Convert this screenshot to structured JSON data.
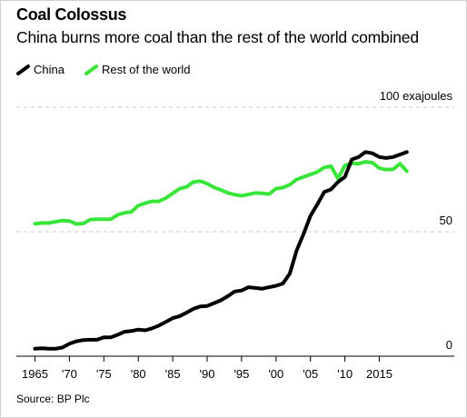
{
  "header": {
    "title": "Coal Colossus",
    "subtitle": "China burns more coal than the rest of the world combined"
  },
  "source": "Source: BP Plc",
  "chart_data": {
    "type": "line",
    "title": "Coal Colossus",
    "subtitle": "China burns more coal than the rest of the world combined",
    "xlim": [
      1965,
      2019
    ],
    "ylim": [
      0,
      100
    ],
    "y_unit_label": "100 exajoules",
    "y_ticks": [
      {
        "value": 0,
        "label": "0"
      },
      {
        "value": 50,
        "label": "50"
      },
      {
        "value": 100,
        "label": "100 exajoules"
      }
    ],
    "x_ticks": [
      {
        "value": 1965,
        "label": "1965"
      },
      {
        "value": 1970,
        "label": "'70"
      },
      {
        "value": 1975,
        "label": "'75"
      },
      {
        "value": 1980,
        "label": "'80"
      },
      {
        "value": 1985,
        "label": "'85"
      },
      {
        "value": 1990,
        "label": "'90"
      },
      {
        "value": 1995,
        "label": "'95"
      },
      {
        "value": 2000,
        "label": "'00"
      },
      {
        "value": 2005,
        "label": "'05"
      },
      {
        "value": 2010,
        "label": "'10"
      },
      {
        "value": 2015,
        "label": "2015"
      }
    ],
    "grid": "dashed horizontal",
    "legend": "top-left",
    "series": [
      {
        "name": "China",
        "color": "#000000",
        "x": [
          1965,
          1966,
          1967,
          1968,
          1969,
          1970,
          1971,
          1972,
          1973,
          1974,
          1975,
          1976,
          1977,
          1978,
          1979,
          1980,
          1981,
          1982,
          1983,
          1984,
          1985,
          1986,
          1987,
          1988,
          1989,
          1990,
          1991,
          1992,
          1993,
          1994,
          1995,
          1996,
          1997,
          1998,
          1999,
          2000,
          2001,
          2002,
          2003,
          2004,
          2005,
          2006,
          2007,
          2008,
          2009,
          2010,
          2011,
          2012,
          2013,
          2014,
          2015,
          2016,
          2017,
          2018,
          2019
        ],
        "values": [
          3,
          3.2,
          3,
          3,
          3.5,
          5,
          6,
          6.5,
          6.6,
          6.6,
          7.6,
          7.6,
          8.6,
          9.8,
          10.1,
          10.7,
          10.4,
          11.2,
          12.3,
          13.8,
          15.3,
          16.1,
          17.5,
          19,
          20,
          20.2,
          21.3,
          22.5,
          24.1,
          26,
          26.4,
          27.7,
          27.4,
          27.1,
          27.7,
          28.3,
          29.2,
          33.2,
          42.5,
          49.1,
          56.4,
          61,
          66,
          67,
          70,
          72,
          79,
          80,
          82,
          81.5,
          80,
          79.6,
          80,
          81,
          82
        ]
      },
      {
        "name": "Rest of the world",
        "color": "#3ae53a",
        "x": [
          1965,
          1966,
          1967,
          1968,
          1969,
          1970,
          1971,
          1972,
          1973,
          1974,
          1975,
          1976,
          1977,
          1978,
          1979,
          1980,
          1981,
          1982,
          1983,
          1984,
          1985,
          1986,
          1987,
          1988,
          1989,
          1990,
          1991,
          1992,
          1993,
          1994,
          1995,
          1996,
          1997,
          1998,
          1999,
          2000,
          2001,
          2002,
          2003,
          2004,
          2005,
          2006,
          2007,
          2008,
          2009,
          2010,
          2011,
          2012,
          2013,
          2014,
          2015,
          2016,
          2017,
          2018,
          2019
        ],
        "values": [
          53.2,
          53.5,
          53.5,
          54,
          54.5,
          54.3,
          53.1,
          53.3,
          54.8,
          55,
          55,
          55,
          56.8,
          57.6,
          58,
          60.5,
          61.5,
          62.2,
          62.2,
          63.5,
          65.4,
          67.3,
          68,
          70,
          70.3,
          69.3,
          67.8,
          66.8,
          65.6,
          64.9,
          64.4,
          65,
          65.6,
          65.4,
          65.1,
          67.3,
          67.7,
          68.9,
          71,
          72,
          73,
          74,
          75.8,
          76.3,
          71.3,
          76.6,
          77.5,
          77.3,
          78.1,
          77.7,
          75.5,
          74.9,
          75.1,
          77.3,
          74.3
        ]
      }
    ]
  }
}
